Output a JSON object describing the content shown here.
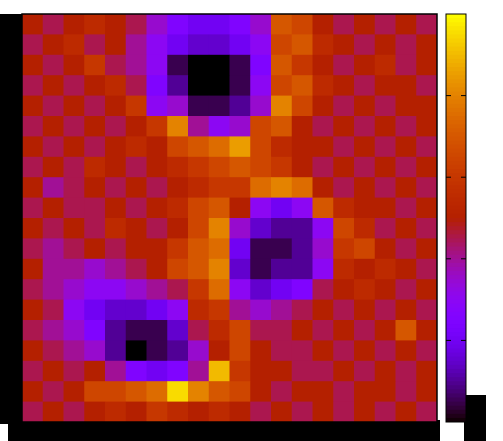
{
  "chart_data": {
    "type": "heatmap",
    "palette": "gnuplot",
    "zlim": [
      0,
      1
    ],
    "colorbar_ticks": [
      0,
      0.2,
      0.4,
      0.6,
      0.8,
      1
    ],
    "values": [
      [
        0.5,
        0.45,
        0.5,
        0.55,
        0.5,
        0.45,
        0.35,
        0.25,
        0.2,
        0.2,
        0.25,
        0.35,
        0.7,
        0.65,
        0.5,
        0.45,
        0.5,
        0.45,
        0.5,
        0.45
      ],
      [
        0.45,
        0.5,
        0.55,
        0.45,
        0.5,
        0.4,
        0.3,
        0.2,
        0.15,
        0.15,
        0.2,
        0.3,
        0.65,
        0.7,
        0.55,
        0.5,
        0.45,
        0.5,
        0.45,
        0.5
      ],
      [
        0.5,
        0.45,
        0.5,
        0.6,
        0.45,
        0.4,
        0.3,
        0.05,
        0,
        0,
        0.05,
        0.25,
        0.7,
        0.6,
        0.5,
        0.45,
        0.5,
        0.55,
        0.45,
        0.5
      ],
      [
        0.45,
        0.5,
        0.45,
        0.5,
        0.55,
        0.45,
        0.25,
        0.1,
        0,
        0,
        0.05,
        0.3,
        0.65,
        0.7,
        0.55,
        0.5,
        0.45,
        0.5,
        0.5,
        0.45
      ],
      [
        0.5,
        0.45,
        0.5,
        0.45,
        0.5,
        0.6,
        0.3,
        0.35,
        0.05,
        0.05,
        0.1,
        0.35,
        0.8,
        0.65,
        0.5,
        0.45,
        0.5,
        0.45,
        0.5,
        0.5
      ],
      [
        0.45,
        0.5,
        0.45,
        0.5,
        0.45,
        0.5,
        0.6,
        0.8,
        0.4,
        0.3,
        0.35,
        0.65,
        0.7,
        0.5,
        0.45,
        0.5,
        0.45,
        0.5,
        0.45,
        0.5
      ],
      [
        0.5,
        0.45,
        0.5,
        0.45,
        0.5,
        0.55,
        0.5,
        0.65,
        0.7,
        0.75,
        0.85,
        0.65,
        0.55,
        0.5,
        0.5,
        0.45,
        0.5,
        0.45,
        0.5,
        0.45
      ],
      [
        0.45,
        0.5,
        0.45,
        0.55,
        0.5,
        0.45,
        0.5,
        0.55,
        0.6,
        0.65,
        0.7,
        0.65,
        0.6,
        0.5,
        0.45,
        0.5,
        0.45,
        0.5,
        0.45,
        0.5
      ],
      [
        0.5,
        0.4,
        0.45,
        0.5,
        0.45,
        0.5,
        0.45,
        0.5,
        0.55,
        0.6,
        0.6,
        0.75,
        0.8,
        0.75,
        0.5,
        0.45,
        0.5,
        0.45,
        0.5,
        0.45
      ],
      [
        0.45,
        0.5,
        0.45,
        0.45,
        0.5,
        0.45,
        0.5,
        0.55,
        0.65,
        0.7,
        0.5,
        0.3,
        0.2,
        0.3,
        0.7,
        0.55,
        0.5,
        0.5,
        0.45,
        0.5
      ],
      [
        0.5,
        0.45,
        0.5,
        0.45,
        0.55,
        0.5,
        0.45,
        0.5,
        0.65,
        0.8,
        0.35,
        0.15,
        0.1,
        0.1,
        0.3,
        0.65,
        0.55,
        0.45,
        0.5,
        0.45
      ],
      [
        0.45,
        0.4,
        0.45,
        0.5,
        0.45,
        0.5,
        0.5,
        0.6,
        0.7,
        0.75,
        0.2,
        0.05,
        0.05,
        0.1,
        0.35,
        0.6,
        0.65,
        0.5,
        0.45,
        0.5
      ],
      [
        0.5,
        0.4,
        0.4,
        0.35,
        0.4,
        0.45,
        0.5,
        0.65,
        0.7,
        0.8,
        0.15,
        0.05,
        0.1,
        0.1,
        0.3,
        0.55,
        0.5,
        0.55,
        0.5,
        0.45
      ],
      [
        0.45,
        0.4,
        0.35,
        0.3,
        0.3,
        0.35,
        0.4,
        0.45,
        0.6,
        0.75,
        0.3,
        0.15,
        0.2,
        0.25,
        0.45,
        0.5,
        0.55,
        0.5,
        0.45,
        0.5
      ],
      [
        0.5,
        0.45,
        0.3,
        0.2,
        0.15,
        0.15,
        0.2,
        0.3,
        0.55,
        0.6,
        0.4,
        0.35,
        0.4,
        0.45,
        0.5,
        0.45,
        0.5,
        0.45,
        0.5,
        0.45
      ],
      [
        0.45,
        0.4,
        0.35,
        0.25,
        0.1,
        0.05,
        0.05,
        0.15,
        0.45,
        0.55,
        0.65,
        0.45,
        0.45,
        0.5,
        0.45,
        0.5,
        0.45,
        0.5,
        0.7,
        0.5
      ],
      [
        0.5,
        0.45,
        0.4,
        0.35,
        0.1,
        0,
        0.05,
        0.1,
        0.35,
        0.5,
        0.65,
        0.5,
        0.45,
        0.45,
        0.5,
        0.45,
        0.5,
        0.45,
        0.5,
        0.45
      ],
      [
        0.45,
        0.5,
        0.45,
        0.5,
        0.4,
        0.25,
        0.2,
        0.25,
        0.4,
        0.9,
        0.6,
        0.5,
        0.5,
        0.45,
        0.45,
        0.5,
        0.45,
        0.5,
        0.45,
        0.5
      ],
      [
        0.5,
        0.45,
        0.5,
        0.65,
        0.65,
        0.7,
        0.75,
        0.95,
        0.8,
        0.7,
        0.65,
        0.5,
        0.45,
        0.5,
        0.5,
        0.45,
        0.5,
        0.5,
        0.45,
        0.5
      ],
      [
        0.45,
        0.5,
        0.45,
        0.5,
        0.55,
        0.5,
        0.6,
        0.55,
        0.5,
        0.55,
        0.5,
        0.45,
        0.5,
        0.45,
        0.5,
        0.45,
        0.5,
        0.45,
        0.5,
        0.45
      ]
    ]
  }
}
